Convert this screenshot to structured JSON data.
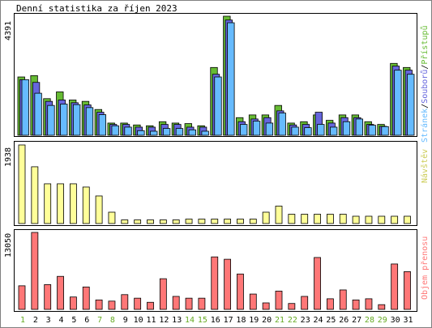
{
  "chart_data": {
    "type": "bar",
    "title": "Denní statistika za říjen 2023",
    "days": [
      "1",
      "2",
      "3",
      "4",
      "5",
      "6",
      "7",
      "8",
      "9",
      "10",
      "11",
      "12",
      "13",
      "14",
      "15",
      "16",
      "17",
      "18",
      "19",
      "20",
      "21",
      "22",
      "23",
      "24",
      "25",
      "26",
      "27",
      "28",
      "29",
      "30",
      "31"
    ],
    "weekend_days": [
      "1",
      "7",
      "8",
      "14",
      "15",
      "21",
      "22",
      "28",
      "29"
    ],
    "colors": {
      "hits": "#66bb33",
      "files": "#6666dd",
      "pages": "#66bbff",
      "visits": "#ffff99",
      "transfer": "#ff7777",
      "weekday_tick": "#000000",
      "weekend_tick": "#66aa22",
      "frame": "#000000",
      "panel_border": "#808080"
    },
    "panels": [
      {
        "id": "hits_panel",
        "ymax_label": "4391",
        "ymax": 4391,
        "legend": {
          "pages_label": "Stránek",
          "files_label": "Souborů",
          "hits_label": "Přístupů",
          "separator": "/"
        },
        "series": [
          {
            "key": "hits",
            "values": [
              2150,
              2200,
              1350,
              1600,
              1300,
              1250,
              950,
              450,
              450,
              380,
              350,
              500,
              450,
              430,
              350,
              2500,
              4391,
              650,
              750,
              750,
              1100,
              450,
              500,
              750,
              550,
              750,
              750,
              500,
              400,
              2650,
              2500
            ]
          },
          {
            "key": "files",
            "values": [
              2050,
              1950,
              1250,
              1300,
              1200,
              1120,
              850,
              400,
              400,
              300,
              300,
              400,
              400,
              300,
              300,
              2250,
              4250,
              500,
              600,
              650,
              900,
              380,
              400,
              850,
              450,
              650,
              650,
              400,
              330,
              2550,
              2400
            ]
          },
          {
            "key": "pages",
            "values": [
              2050,
              1550,
              1100,
              1150,
              1130,
              1020,
              760,
              350,
              300,
              170,
              150,
              250,
              250,
              200,
              150,
              2150,
              4150,
              400,
              520,
              450,
              820,
              300,
              280,
              400,
              300,
              500,
              600,
              370,
              320,
              2400,
              2250
            ]
          }
        ]
      },
      {
        "id": "visits_panel",
        "ymax_label": "1938",
        "ymax": 1938,
        "legend": {
          "visits_label": "Návštěv"
        },
        "series": [
          {
            "key": "visits",
            "values": [
              1938,
              1400,
              980,
              980,
              980,
              900,
              680,
              280,
              90,
              90,
              90,
              90,
              90,
              110,
              110,
              110,
              110,
              110,
              110,
              280,
              430,
              230,
              230,
              230,
              230,
              230,
              180,
              180,
              180,
              180,
              180
            ]
          }
        ]
      },
      {
        "id": "transfer_panel",
        "ymax_label": "13050",
        "ymax": 13050,
        "legend": {
          "transfer_label": "Objem přenosu"
        },
        "series": [
          {
            "key": "transfer",
            "values": [
              4000,
              13050,
              4200,
              5600,
              2100,
              3800,
              1600,
              1400,
              2500,
              1900,
              1200,
              5200,
              2200,
              1900,
              1900,
              8900,
              8500,
              6000,
              2600,
              1100,
              3100,
              1000,
              2200,
              8800,
              1800,
              3300,
              1600,
              1800,
              800,
              7700,
              6400
            ]
          }
        ]
      }
    ]
  }
}
